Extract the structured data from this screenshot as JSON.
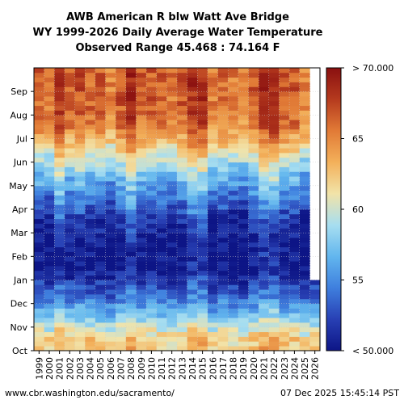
{
  "chart_data": {
    "type": "heatmap",
    "title_lines": [
      "AWB American R blw Watt Ave Bridge",
      "WY 1999-2026 Daily Average Water Temperature",
      "Observed Range 45.468 : 74.164 F"
    ],
    "x_categories": [
      "1999",
      "2000",
      "2001",
      "2002",
      "2003",
      "2004",
      "2005",
      "2006",
      "2007",
      "2008",
      "2009",
      "2010",
      "2011",
      "2012",
      "2013",
      "2014",
      "2015",
      "2016",
      "2017",
      "2018",
      "2019",
      "2020",
      "2021",
      "2022",
      "2023",
      "2024",
      "2025",
      "2026"
    ],
    "y_months": [
      "Oct",
      "Nov",
      "Dec",
      "Jan",
      "Feb",
      "Mar",
      "Apr",
      "May",
      "Jun",
      "Jul",
      "Aug",
      "Sep"
    ],
    "value_range": [
      50,
      70
    ],
    "colorbar": {
      "tick_labels": [
        "> 70.000",
        "65",
        "60",
        "55",
        "< 50.000"
      ],
      "tick_values": [
        70,
        65,
        60,
        55,
        50
      ]
    },
    "monthly_typical_temperature_F": {
      "Oct": 62,
      "Nov": 57,
      "Dec": 53,
      "Jan": 50,
      "Feb": 50,
      "Mar": 51,
      "Apr": 54,
      "May": 57,
      "Jun": 61,
      "Jul": 65,
      "Aug": 66,
      "Sep": 66
    },
    "warm_years": [
      "2001",
      "2008",
      "2014",
      "2015",
      "2021",
      "2022"
    ],
    "data_end_2026": "Dec",
    "grid": true
  },
  "footer": {
    "url": "www.cbr.washington.edu/sacramento/",
    "timestamp": "07 Dec 2025 15:45:14 PST"
  },
  "colors": {
    "scale": [
      "#0d1586",
      "#2840b4",
      "#3f7fde",
      "#62b6ee",
      "#a7def0",
      "#f2e3a8",
      "#f3b05a",
      "#e17a36",
      "#b53a1e",
      "#8a1010"
    ]
  }
}
